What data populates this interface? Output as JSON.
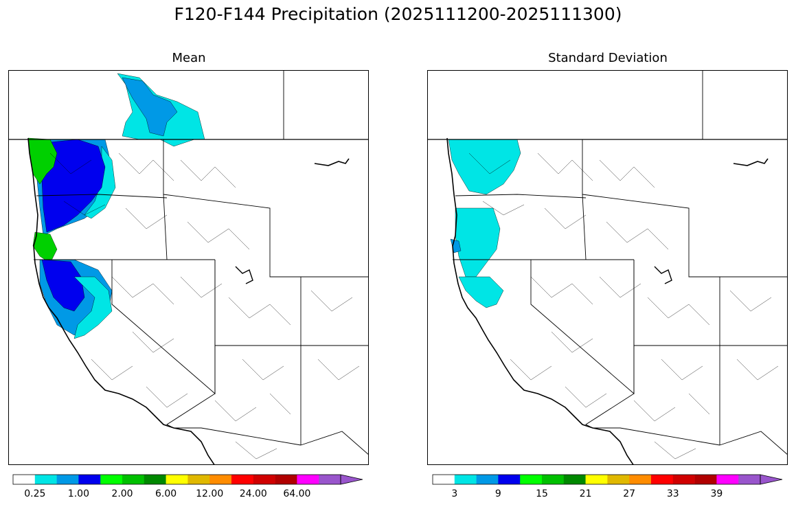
{
  "title": "F120-F144 Precipitation (2025111200-2025111300)",
  "panels": [
    {
      "name": "mean",
      "title": "Mean",
      "colorbar_labels": [
        "0.25",
        "1.00",
        "2.00",
        "6.00",
        "12.00",
        "24.00",
        "64.00"
      ]
    },
    {
      "name": "std",
      "title": "Standard Deviation",
      "colorbar_labels": [
        "3",
        "9",
        "15",
        "21",
        "27",
        "33",
        "39"
      ]
    }
  ],
  "colorbar_colors": [
    "#ffffff",
    "#00e5e5",
    "#0099e6",
    "#0000ee",
    "#00ff00",
    "#00c000",
    "#008800",
    "#ffff00",
    "#e0b800",
    "#ff8c00",
    "#ff0000",
    "#d00000",
    "#b00000",
    "#ff00ff",
    "#9955cc"
  ],
  "shading_colors": {
    "cyan": "#00e5e5",
    "light_blue": "#0099e6",
    "blue": "#0000ee",
    "green": "#00d000"
  }
}
